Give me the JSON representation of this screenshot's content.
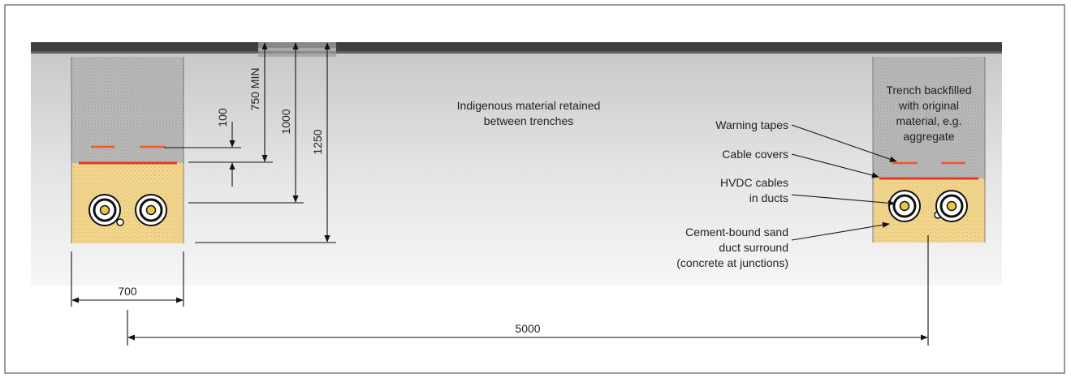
{
  "colors": {
    "surface_dark": "#3c3c3c",
    "surface_light": "#9a9a9a",
    "ground_top": "#cfcfcf",
    "ground_bottom": "#f5f5f5",
    "backfill": "#b9b9b9",
    "sand": "#f2d48a",
    "warning_tape": "#ef5a24",
    "cable_cover": "#e23b1e",
    "duct_core": "#e8c84a",
    "line": "#111111"
  },
  "labels": {
    "indigenous": [
      "Indigenous material retained",
      "between trenches"
    ],
    "backfill": [
      "Trench backfilled",
      "with original",
      "material, e.g.",
      "aggregate"
    ],
    "warning_tapes": "Warning tapes",
    "cable_covers": "Cable covers",
    "hvdc": [
      "HVDC cables",
      "in ducts"
    ],
    "surround": [
      "Cement-bound sand",
      "duct surround",
      "(concrete at junctions)"
    ]
  },
  "dimensions": {
    "d100": "100",
    "d750": "750 MIN",
    "d1000": "1000",
    "d1250": "1250",
    "width": "700",
    "spacing": "5000"
  },
  "icons": [
    "duct-icon",
    "small-cable-icon",
    "arrow-icon"
  ]
}
